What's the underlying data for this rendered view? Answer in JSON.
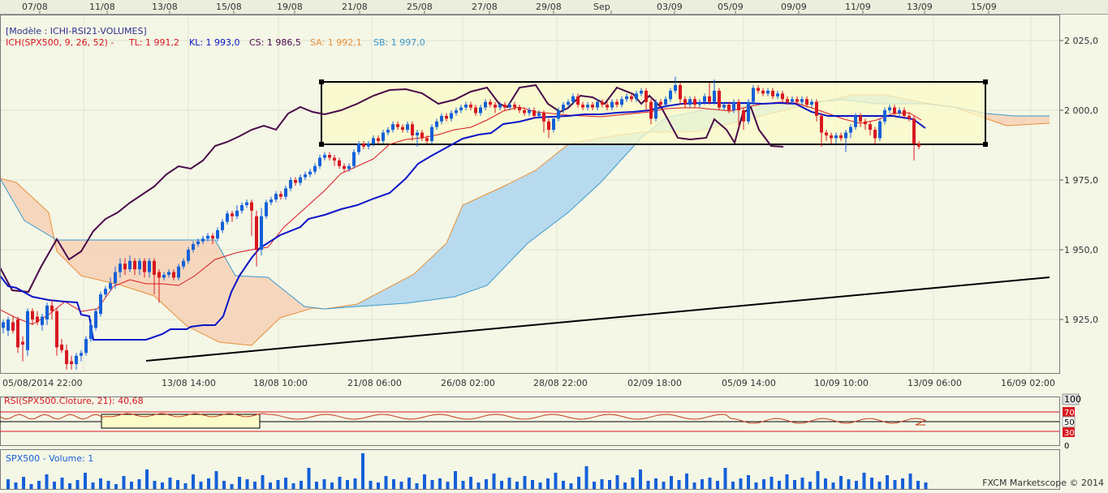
{
  "top_dates": [
    "07/08",
    "11/08",
    "13/08",
    "15/08",
    "19/08",
    "21/08",
    "25/08",
    "27/08",
    "29/08",
    "Sep",
    "03/09",
    "05/09",
    "09/09",
    "11/09",
    "13/09",
    "15/09"
  ],
  "legend": {
    "model": "[Modèle : ICHI-RSI21-VOLUMES]",
    "ich": "ICH(SPX500, 9, 26, 52) -",
    "tl": "TL: 1 991,2",
    "kl": "KL: 1 993,0",
    "cs": "CS: 1 986,5",
    "sa": "SA: 1 992,1",
    "sb": "SB: 1 997,0"
  },
  "y_ticks": [
    "2 025,0",
    "2 000,0",
    "1 975,0",
    "1 950,0",
    "1 925,0"
  ],
  "time_labels": [
    "05/08/2014 22:00",
    "13/08 14:00",
    "18/08 10:00",
    "21/08 06:00",
    "26/08 02:00",
    "28/08 22:00",
    "02/09 18:00",
    "05/09 14:00",
    "10/09 10:00",
    "13/09 06:00",
    "16/09 02:00"
  ],
  "rsi": {
    "label": "RSI(SPX500.Cloture, 21): 40,68",
    "ticks": [
      "100",
      "70",
      "50",
      "30",
      "0"
    ]
  },
  "volume": {
    "label": "SPX500 - Volume: 1"
  },
  "footer": "FXCM Marketscope © 2014",
  "chart_data": {
    "type": "candlestick",
    "title": "ICH(SPX500, 9, 26, 52)",
    "ylim": [
      1905,
      2035
    ],
    "x_range": [
      "05/08/2014 22:00",
      "16/09 02:00"
    ],
    "indicators": {
      "tenkan": 1991.2,
      "kijun": 1993.0,
      "chikou": 1986.5,
      "senkou_a": 1992.1,
      "senkou_b": 1997.0
    },
    "range_box": {
      "low": 1988,
      "high": 2011
    },
    "rsi_value": 40.68,
    "rsi_levels": [
      70,
      50,
      30
    ],
    "colors": {
      "bull": "#1560d8",
      "bear": "#d81820",
      "tenkan": "#d81820",
      "kijun": "#0a14c8",
      "chikou": "#4a0a4a",
      "cloud_bull": "#b4daf0",
      "cloud_bear": "#f6d4b8",
      "background": "#f4f6e6",
      "box_fill": "#fbfbc8"
    }
  }
}
